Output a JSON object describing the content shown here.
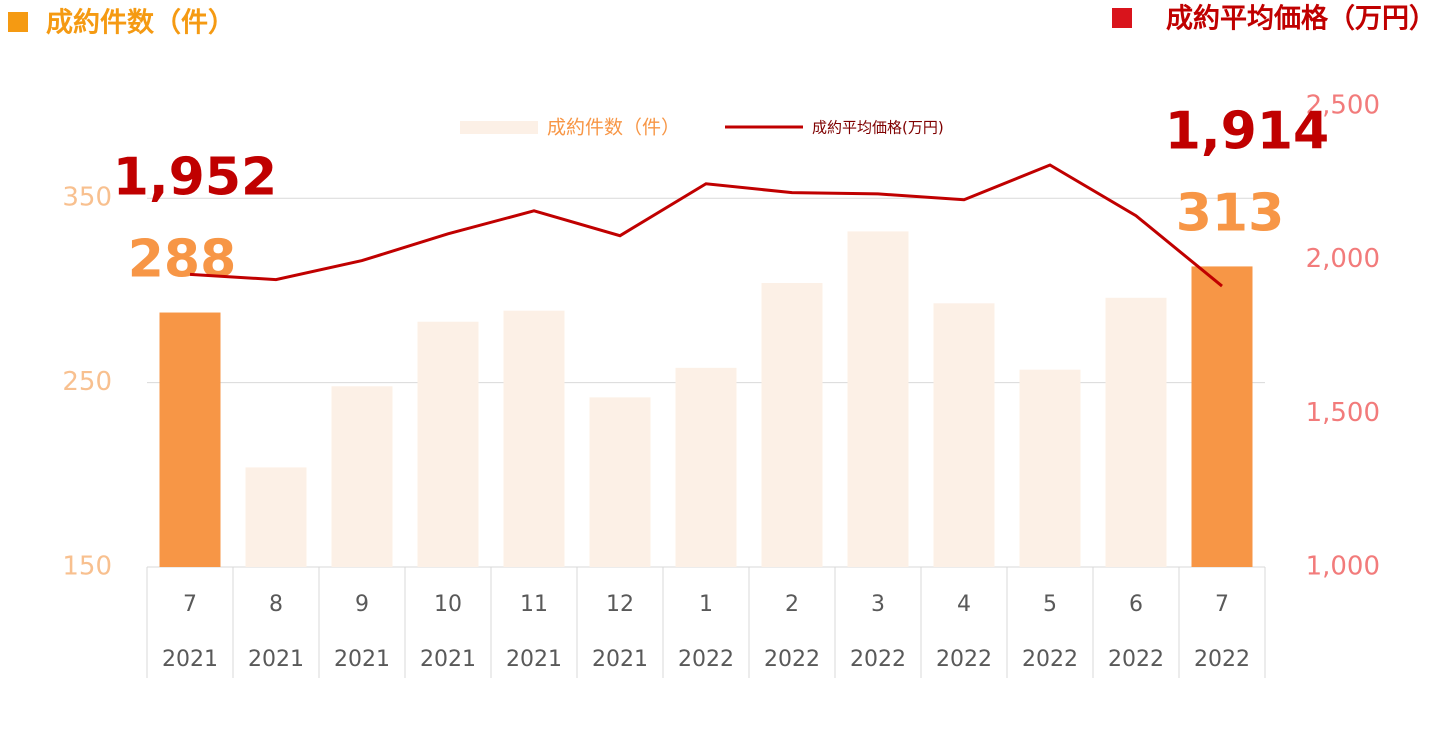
{
  "chart_data": {
    "type": "bar_line",
    "left_title": "成約件数（件）",
    "right_title": "成約平均価格（万円）",
    "categories": [
      [
        "7",
        "2021"
      ],
      [
        "8",
        "2021"
      ],
      [
        "9",
        "2021"
      ],
      [
        "10",
        "2021"
      ],
      [
        "11",
        "2021"
      ],
      [
        "12",
        "2021"
      ],
      [
        "1",
        "2022"
      ],
      [
        "2",
        "2022"
      ],
      [
        "3",
        "2022"
      ],
      [
        "4",
        "2022"
      ],
      [
        "5",
        "2022"
      ],
      [
        "6",
        "2022"
      ],
      [
        "7",
        "2022"
      ]
    ],
    "series": [
      {
        "name": "成約件数（件）",
        "type": "bar",
        "color": "#fcf0e6",
        "highlight_color": "#f79646",
        "values": [
          288,
          204,
          248,
          283,
          289,
          242,
          258,
          304,
          332,
          293,
          257,
          296,
          313
        ],
        "value_labels": [
          "288",
          null,
          null,
          null,
          null,
          null,
          null,
          null,
          null,
          null,
          null,
          null,
          "313"
        ]
      },
      {
        "name": "成約平均価格(万円)",
        "type": "line",
        "axis": "y2",
        "color": "#c00000",
        "values": [
          1952,
          1935,
          1997,
          2084,
          2159,
          2078,
          2247,
          2218,
          2214,
          2195,
          2308,
          2143,
          1914
        ],
        "value_labels": [
          "1,952",
          null,
          null,
          null,
          null,
          null,
          null,
          null,
          null,
          null,
          null,
          null,
          "1,914"
        ]
      }
    ],
    "ylim": [
      150,
      400
    ],
    "yticks": [
      150,
      250,
      350
    ],
    "y2lim": [
      1000,
      2500
    ],
    "y2ticks": [
      {
        "value": 1000,
        "label": "1,000"
      },
      {
        "value": 1500,
        "label": "1,500"
      },
      {
        "value": 2000,
        "label": "2,000"
      },
      {
        "value": 2500,
        "label": "2,500"
      }
    ],
    "grid": true
  }
}
